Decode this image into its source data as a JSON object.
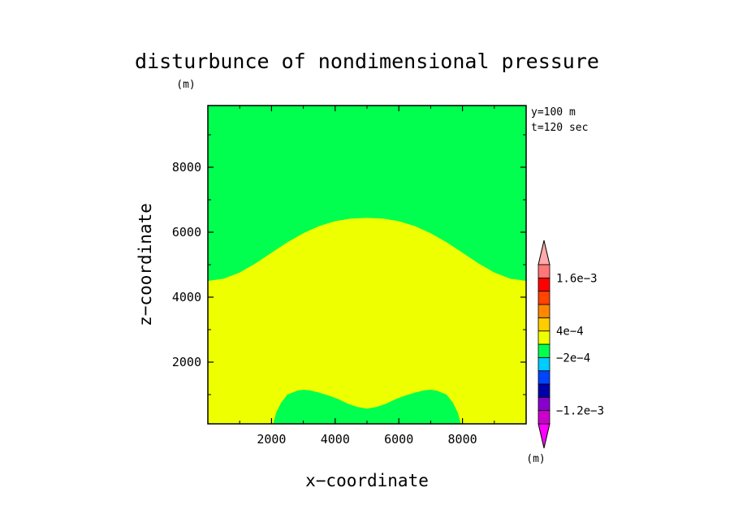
{
  "chart_data": {
    "type": "contour",
    "title": "disturbunce of nondimensional pressure",
    "xlabel": "x−coordinate",
    "ylabel": "z−coordinate",
    "unit_x": "(m)",
    "unit_y": "(m)",
    "xlim": [
      0,
      10000
    ],
    "ylim": [
      100,
      9900
    ],
    "xticks": [
      2000,
      4000,
      6000,
      8000
    ],
    "yticks": [
      2000,
      4000,
      6000,
      8000
    ],
    "xtick_labels": [
      "2000",
      "4000",
      "6000",
      "8000"
    ],
    "ytick_labels": [
      "2000",
      "4000",
      "6000",
      "8000"
    ],
    "annotations": [
      "y=100  m",
      "t=120  sec"
    ],
    "background_color": "#00ff4e",
    "regions": [
      {
        "name": "upper-dome",
        "color": "#eeff00",
        "boundary_x": [
          0,
          500,
          1000,
          1500,
          2000,
          2500,
          3000,
          3500,
          4000,
          4500,
          5000,
          5500,
          6000,
          6500,
          7000,
          7500,
          8000,
          8500,
          9000,
          9500,
          10000
        ],
        "boundary_z": [
          4500,
          4570,
          4760,
          5040,
          5370,
          5690,
          5970,
          6190,
          6340,
          6420,
          6440,
          6420,
          6340,
          6190,
          5970,
          5690,
          5370,
          5040,
          4760,
          4570,
          4500
        ]
      },
      {
        "name": "lower-twin-bumps",
        "color": "#00ff4e",
        "boundary_x": [
          2050,
          2150,
          2300,
          2500,
          2800,
          3000,
          3200,
          3500,
          3800,
          4100,
          4400,
          4700,
          5000,
          5300,
          5600,
          5900,
          6200,
          6500,
          6800,
          7000,
          7200,
          7500,
          7700,
          7850,
          7950
        ],
        "boundary_z": [
          100,
          450,
          750,
          1000,
          1120,
          1150,
          1130,
          1060,
          970,
          860,
          720,
          620,
          570,
          620,
          720,
          860,
          970,
          1060,
          1130,
          1150,
          1120,
          1000,
          750,
          450,
          100
        ]
      }
    ],
    "colorbar": {
      "colors": [
        "#ff00ff",
        "#cc00cc",
        "#8800cc",
        "#0000aa",
        "#0044ff",
        "#00ccff",
        "#00ff4e",
        "#eeff00",
        "#ffcc00",
        "#ff8800",
        "#ff4400",
        "#ff0000",
        "#ff7777",
        "#ffaaaa"
      ],
      "labels": [
        {
          "text": "1.6e−3",
          "boundary": 11
        },
        {
          "text": "4e−4",
          "boundary": 7
        },
        {
          "text": "−2e−4",
          "boundary": 5
        },
        {
          "text": "−1.2e−3",
          "boundary": 1
        }
      ]
    }
  }
}
